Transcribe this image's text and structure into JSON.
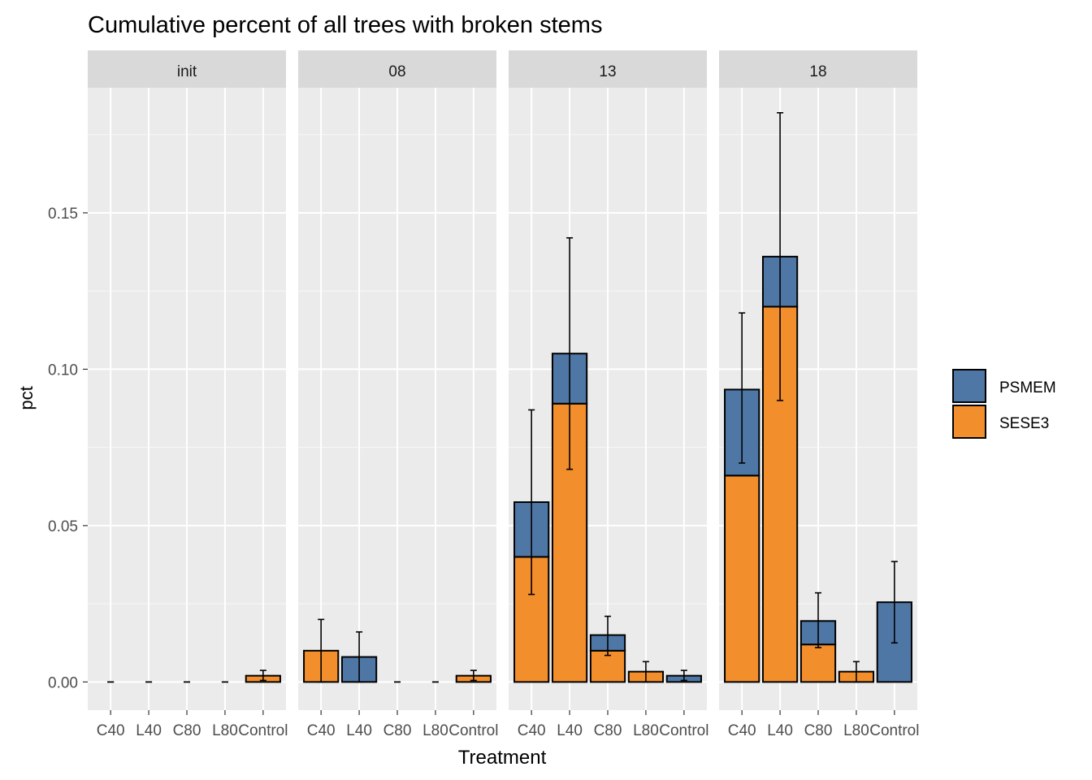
{
  "chart_data": {
    "type": "bar",
    "stacked": true,
    "title": "Cumulative percent of all trees with broken stems",
    "xlabel": "Treatment",
    "ylabel": "pct",
    "ylim": [
      -0.009,
      0.19
    ],
    "yticks": [
      0.0,
      0.05,
      0.1,
      0.15
    ],
    "ytick_labels": [
      "0.00",
      "0.05",
      "0.10",
      "0.15"
    ],
    "categories": [
      "C40",
      "L40",
      "C80",
      "L80",
      "Control"
    ],
    "grid": true,
    "legend_position": "right",
    "series_colors": {
      "PSMEM": "#4e77a6",
      "SESE3": "#f28e2b"
    },
    "legend": [
      {
        "name": "PSMEM",
        "color": "#4e77a6"
      },
      {
        "name": "SESE3",
        "color": "#f28e2b"
      }
    ],
    "panels": [
      {
        "label": "init",
        "bars": [
          {
            "category": "C40",
            "SESE3": 0,
            "PSMEM": 0,
            "err": [
              0,
              0
            ]
          },
          {
            "category": "L40",
            "SESE3": 0,
            "PSMEM": 0,
            "err": [
              0,
              0
            ]
          },
          {
            "category": "C80",
            "SESE3": 0,
            "PSMEM": 0,
            "err": [
              0,
              0
            ]
          },
          {
            "category": "L80",
            "SESE3": 0,
            "PSMEM": 0,
            "err": [
              0,
              0
            ]
          },
          {
            "category": "Control",
            "SESE3": 0.002,
            "PSMEM": 0,
            "err": [
              0.0005,
              0.0037
            ]
          }
        ]
      },
      {
        "label": "08",
        "bars": [
          {
            "category": "C40",
            "SESE3": 0.01,
            "PSMEM": 0,
            "err": [
              0,
              0.02
            ]
          },
          {
            "category": "L40",
            "SESE3": 0,
            "PSMEM": 0.008,
            "err": [
              0,
              0.016
            ]
          },
          {
            "category": "C80",
            "SESE3": 0,
            "PSMEM": 0,
            "err": [
              0,
              0
            ]
          },
          {
            "category": "L80",
            "SESE3": 0,
            "PSMEM": 0,
            "err": [
              0,
              0
            ]
          },
          {
            "category": "Control",
            "SESE3": 0.002,
            "PSMEM": 0,
            "err": [
              0.0005,
              0.0037
            ]
          }
        ]
      },
      {
        "label": "13",
        "bars": [
          {
            "category": "C40",
            "SESE3": 0.04,
            "PSMEM": 0.0175,
            "err": [
              0.028,
              0.087
            ]
          },
          {
            "category": "L40",
            "SESE3": 0.089,
            "PSMEM": 0.016,
            "err": [
              0.068,
              0.142
            ]
          },
          {
            "category": "C80",
            "SESE3": 0.01,
            "PSMEM": 0.005,
            "err": [
              0.0085,
              0.021
            ]
          },
          {
            "category": "L80",
            "SESE3": 0.0033,
            "PSMEM": 0,
            "err": [
              0,
              0.0065
            ]
          },
          {
            "category": "Control",
            "SESE3": 0,
            "PSMEM": 0.002,
            "err": [
              0.0005,
              0.0037
            ]
          }
        ]
      },
      {
        "label": "18",
        "bars": [
          {
            "category": "C40",
            "SESE3": 0.066,
            "PSMEM": 0.0275,
            "err": [
              0.07,
              0.118
            ]
          },
          {
            "category": "L40",
            "SESE3": 0.12,
            "PSMEM": 0.016,
            "err": [
              0.09,
              0.182
            ]
          },
          {
            "category": "C80",
            "SESE3": 0.012,
            "PSMEM": 0.0075,
            "err": [
              0.011,
              0.0285
            ]
          },
          {
            "category": "L80",
            "SESE3": 0.0033,
            "PSMEM": 0,
            "err": [
              0,
              0.0065
            ]
          },
          {
            "category": "Control",
            "SESE3": 0,
            "PSMEM": 0.0255,
            "err": [
              0.0125,
              0.0385
            ]
          }
        ]
      }
    ]
  }
}
